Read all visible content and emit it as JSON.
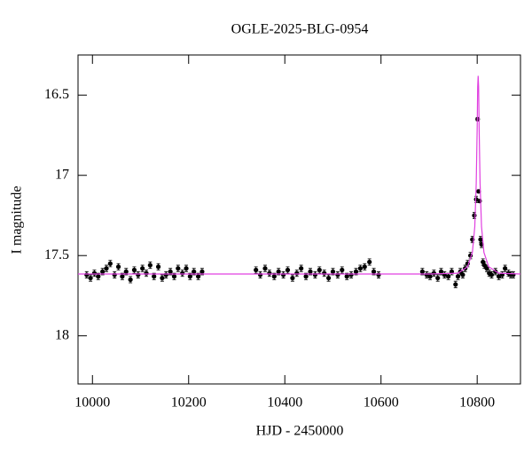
{
  "chart_data": {
    "type": "scatter",
    "title": "OGLE-2025-BLG-0954",
    "xlabel": "HJD - 2450000",
    "ylabel": "I magnitude",
    "xlim": [
      9970,
      10890
    ],
    "ylim": [
      18.3,
      16.25
    ],
    "xticks": [
      10000,
      10200,
      10400,
      10600,
      10800
    ],
    "yticks": [
      16.5,
      17,
      17.5,
      18
    ],
    "series": [
      {
        "kind": "errorbar",
        "color": "#000000",
        "x": [
          9988,
          9996,
          10004,
          10012,
          10021,
          10029,
          10037,
          10046,
          10054,
          10062,
          10070,
          10079,
          10087,
          10095,
          10104,
          10112,
          10120,
          10128,
          10137,
          10145,
          10153,
          10162,
          10170,
          10178,
          10187,
          10195,
          10203,
          10211,
          10220,
          10228,
          10340,
          10349,
          10359,
          10368,
          10378,
          10387,
          10397,
          10406,
          10416,
          10425,
          10434,
          10444,
          10453,
          10463,
          10472,
          10482,
          10491,
          10500,
          10510,
          10519,
          10529,
          10538,
          10548,
          10557,
          10566,
          10576,
          10585,
          10595,
          10686,
          10695,
          10702,
          10710,
          10718,
          10725,
          10732,
          10740,
          10747,
          10755,
          10760,
          10765,
          10770,
          10775,
          10780,
          10786,
          10790,
          10794,
          10798,
          10801,
          10803,
          10805,
          10807,
          10809,
          10812,
          10815,
          10820,
          10825,
          10830,
          10838,
          10845,
          10852,
          10858,
          10865,
          10870,
          10875
        ],
        "values": [
          17.62,
          17.64,
          17.61,
          17.63,
          17.6,
          17.58,
          17.55,
          17.62,
          17.57,
          17.63,
          17.6,
          17.65,
          17.59,
          17.62,
          17.58,
          17.61,
          17.56,
          17.63,
          17.57,
          17.64,
          17.62,
          17.6,
          17.63,
          17.58,
          17.61,
          17.58,
          17.63,
          17.6,
          17.63,
          17.6,
          17.59,
          17.62,
          17.58,
          17.61,
          17.63,
          17.6,
          17.62,
          17.59,
          17.64,
          17.61,
          17.58,
          17.63,
          17.6,
          17.62,
          17.59,
          17.61,
          17.64,
          17.6,
          17.62,
          17.59,
          17.63,
          17.62,
          17.6,
          17.58,
          17.57,
          17.54,
          17.6,
          17.62,
          17.6,
          17.62,
          17.63,
          17.61,
          17.64,
          17.6,
          17.62,
          17.63,
          17.6,
          17.68,
          17.63,
          17.6,
          17.62,
          17.58,
          17.55,
          17.5,
          17.4,
          17.25,
          17.15,
          16.65,
          17.1,
          17.16,
          17.4,
          17.43,
          17.54,
          17.56,
          17.58,
          17.61,
          17.62,
          17.6,
          17.63,
          17.62,
          17.58,
          17.61,
          17.62,
          17.62
        ],
        "errors": [
          0.02,
          0.02,
          0.02,
          0.02,
          0.02,
          0.02,
          0.02,
          0.02,
          0.02,
          0.02,
          0.02,
          0.02,
          0.02,
          0.02,
          0.02,
          0.02,
          0.02,
          0.02,
          0.02,
          0.02,
          0.02,
          0.02,
          0.02,
          0.02,
          0.02,
          0.02,
          0.02,
          0.02,
          0.02,
          0.02,
          0.02,
          0.02,
          0.02,
          0.02,
          0.02,
          0.02,
          0.02,
          0.02,
          0.02,
          0.02,
          0.02,
          0.02,
          0.02,
          0.02,
          0.02,
          0.02,
          0.02,
          0.02,
          0.02,
          0.02,
          0.02,
          0.02,
          0.02,
          0.02,
          0.02,
          0.02,
          0.02,
          0.02,
          0.02,
          0.02,
          0.02,
          0.02,
          0.02,
          0.02,
          0.02,
          0.02,
          0.02,
          0.02,
          0.02,
          0.02,
          0.02,
          0.02,
          0.02,
          0.02,
          0.02,
          0.02,
          0.02,
          0.01,
          0.01,
          0.01,
          0.02,
          0.02,
          0.02,
          0.02,
          0.02,
          0.02,
          0.02,
          0.02,
          0.02,
          0.02,
          0.02,
          0.02,
          0.02,
          0.02
        ]
      },
      {
        "kind": "line",
        "color": "#e040e0",
        "x": [
          9970,
          10700,
          10760,
          10780,
          10790,
          10795,
          10798,
          10800,
          10801,
          10802,
          10803,
          10804,
          10806,
          10809,
          10814,
          10824,
          10845,
          10890
        ],
        "values": [
          17.615,
          17.615,
          17.61,
          17.57,
          17.48,
          17.32,
          17.05,
          16.7,
          16.45,
          16.38,
          16.45,
          16.7,
          17.05,
          17.32,
          17.48,
          17.57,
          17.61,
          17.615
        ]
      }
    ]
  }
}
